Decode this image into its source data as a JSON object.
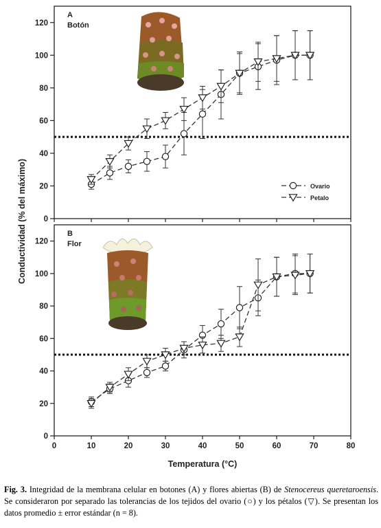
{
  "chart_data": [
    {
      "type": "line",
      "panel_letter": "A",
      "panel_label": "Botón",
      "ylabel": "Conductividad (% del máximo)",
      "ylim": [
        0,
        130
      ],
      "yticks": [
        0,
        20,
        40,
        60,
        80,
        100,
        120
      ],
      "threshold": 50,
      "legend": {
        "position": "center-right",
        "entries": [
          "Ovario",
          "Petalo"
        ]
      },
      "series": [
        {
          "name": "Ovario",
          "marker": "circle",
          "x": [
            10,
            15,
            20,
            25,
            30,
            35,
            40,
            45,
            50,
            55,
            60,
            65,
            69
          ],
          "y": [
            21,
            28,
            32,
            35,
            38,
            52,
            64,
            76,
            89,
            93,
            97,
            100,
            100
          ],
          "err": [
            3,
            4,
            4,
            6,
            7,
            13,
            15,
            15,
            13,
            14,
            15,
            15,
            15
          ]
        },
        {
          "name": "Petalo",
          "marker": "triangle-down",
          "x": [
            10,
            15,
            20,
            25,
            30,
            35,
            40,
            45,
            50,
            55,
            60,
            65,
            69
          ],
          "y": [
            24,
            35,
            46,
            55,
            60,
            67,
            74,
            81,
            89,
            96,
            98,
            100,
            100
          ],
          "err": [
            3,
            4,
            4,
            6,
            5,
            7,
            7,
            10,
            12,
            12,
            14,
            15,
            15
          ]
        }
      ]
    },
    {
      "type": "line",
      "panel_letter": "B",
      "panel_label": "Flor",
      "xlabel": "Temperatura (°C)",
      "xlim": [
        0,
        80
      ],
      "xticks": [
        0,
        10,
        20,
        30,
        40,
        50,
        60,
        70,
        80
      ],
      "ylim": [
        0,
        130
      ],
      "yticks": [
        0,
        20,
        40,
        60,
        80,
        100,
        120
      ],
      "threshold": 50,
      "series": [
        {
          "name": "Ovario",
          "marker": "circle",
          "x": [
            10,
            15,
            20,
            25,
            30,
            35,
            40,
            45,
            50,
            55,
            60,
            65,
            69
          ],
          "y": [
            21,
            29,
            34,
            39,
            43,
            53,
            62,
            69,
            79,
            85,
            98,
            100,
            100
          ],
          "err": [
            3,
            3,
            4,
            3,
            3,
            5,
            6,
            9,
            13,
            11,
            12,
            12,
            12
          ]
        },
        {
          "name": "Petalo",
          "marker": "triangle-down",
          "x": [
            10,
            15,
            20,
            25,
            30,
            35,
            40,
            45,
            50,
            55,
            60,
            65,
            69
          ],
          "y": [
            20,
            30,
            38,
            46,
            50,
            54,
            56,
            57,
            61,
            93,
            98,
            99,
            100
          ],
          "err": [
            3,
            3,
            4,
            4,
            4,
            4,
            5,
            5,
            6,
            16,
            12,
            12,
            12
          ]
        }
      ]
    }
  ],
  "caption": {
    "label": "Fig. 3.",
    "text_1": " Integridad de la membrana celular en botones (A)  y flores abiertas (B) de ",
    "species": "Stenocereus queretaroensis",
    "text_2": ". Se consideraron por separado las tolerancias de los tejidos del ovario (○) y los pétalos (▽). Se presentan los datos promedio ± error estándar (n = 8)."
  }
}
